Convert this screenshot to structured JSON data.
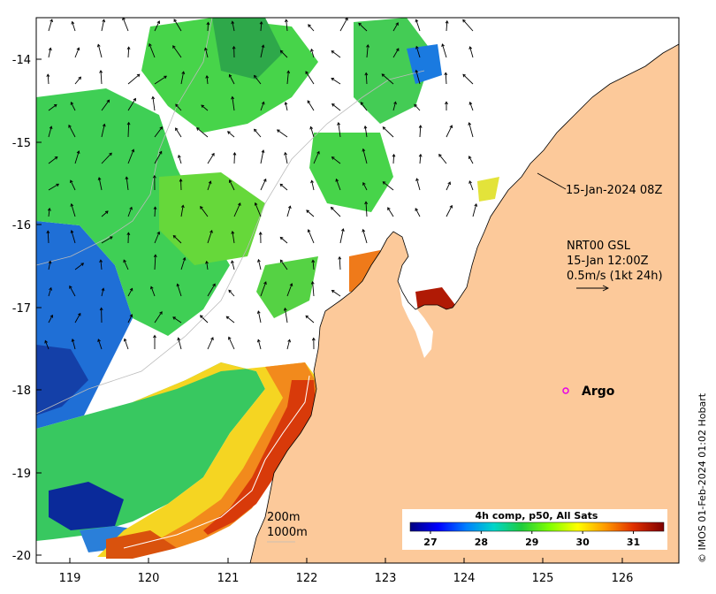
{
  "map": {
    "x_ticks": [
      "119",
      "120",
      "121",
      "122",
      "123",
      "124",
      "125",
      "126"
    ],
    "y_ticks": [
      "-14",
      "-15",
      "-16",
      "-17",
      "-18",
      "-19",
      "-20"
    ],
    "image_timestamp": "15-Jan-2024 08Z",
    "current_product": "NRT00 GSL",
    "current_time": "15-Jan 12:00Z",
    "current_scale": "0.5m/s (1kt 24h)",
    "isobath_shallow": "200m",
    "isobath_deep": "1000m",
    "float_label": "Argo",
    "float_color": "#e600e6",
    "land_color": "#fcc99a",
    "credit": "© IMOS 01-Feb-2024 01:02 Hobart"
  },
  "colorbar": {
    "title": "4h comp, p50, All Sats",
    "ticks": [
      "27",
      "28",
      "29",
      "30",
      "31"
    ],
    "range": [
      26.6,
      31.6
    ],
    "stops": [
      "#00007f",
      "#0000ff",
      "#007fff",
      "#00d5c9",
      "#1fcc3d",
      "#7fff00",
      "#ffff00",
      "#ff9900",
      "#e03000",
      "#7f0000"
    ]
  }
}
